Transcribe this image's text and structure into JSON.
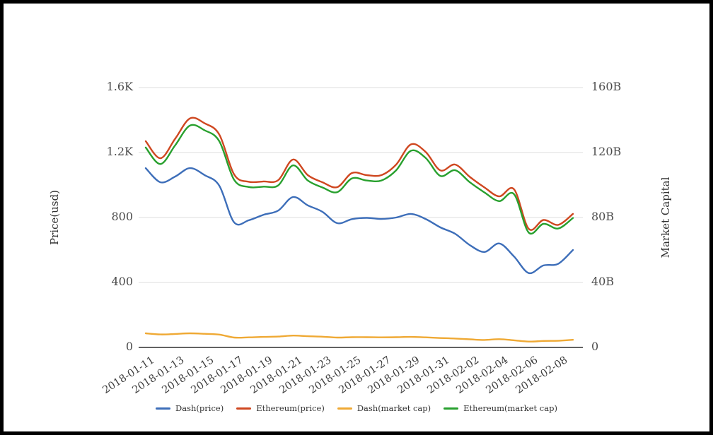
{
  "colors": {
    "background": "#ffffff",
    "frame_border": "#000000",
    "gridline": "#dcdcdc",
    "axis_line": "#2f2f2f",
    "tick_text": "#4a4a4a"
  },
  "chart_data": {
    "type": "line",
    "smooth": true,
    "grid": "horizontal",
    "legend_position": "bottom",
    "x": [
      "2018-01-11",
      "2018-01-12",
      "2018-01-13",
      "2018-01-14",
      "2018-01-15",
      "2018-01-16",
      "2018-01-17",
      "2018-01-18",
      "2018-01-19",
      "2018-01-20",
      "2018-01-21",
      "2018-01-22",
      "2018-01-23",
      "2018-01-24",
      "2018-01-25",
      "2018-01-26",
      "2018-01-27",
      "2018-01-28",
      "2018-01-29",
      "2018-01-30",
      "2018-01-31",
      "2018-02-01",
      "2018-02-02",
      "2018-02-03",
      "2018-02-04",
      "2018-02-05",
      "2018-02-06",
      "2018-02-07",
      "2018-02-08",
      "2018-02-09"
    ],
    "x_tick_every": 2,
    "x_tick_labels": [
      "2018-01-11",
      "2018-01-13",
      "2018-01-15",
      "2018-01-17",
      "2018-01-19",
      "2018-01-21",
      "2018-01-23",
      "2018-01-25",
      "2018-01-27",
      "2018-01-29",
      "2018-01-31",
      "2018-02-02",
      "2018-02-04",
      "2018-02-06",
      "2018-02-08"
    ],
    "axes": {
      "left": {
        "title": "Price(usd)",
        "max": 1600,
        "ticks": [
          {
            "value": 0,
            "label": "0"
          },
          {
            "value": 400,
            "label": "400"
          },
          {
            "value": 800,
            "label": "800"
          },
          {
            "value": 1200,
            "label": "1.2K"
          },
          {
            "value": 1600,
            "label": "1.6K"
          }
        ]
      },
      "right": {
        "title": "Market Capital",
        "max": 160,
        "ticks": [
          {
            "value": 0,
            "label": "0"
          },
          {
            "value": 40,
            "label": "40B"
          },
          {
            "value": 80,
            "label": "80B"
          },
          {
            "value": 120,
            "label": "120B"
          },
          {
            "value": 160,
            "label": "160B"
          }
        ]
      }
    },
    "series": [
      {
        "name": "Dash(price)",
        "axis": "left",
        "color": "#3d6eb9",
        "values": [
          1104,
          1017,
          1052,
          1104,
          1061,
          995,
          770,
          783,
          817,
          843,
          926,
          875,
          835,
          765,
          790,
          798,
          791,
          800,
          822,
          791,
          739,
          700,
          630,
          588,
          640,
          560,
          458,
          505,
          515,
          600
        ]
      },
      {
        "name": "Ethereum(price)",
        "axis": "left",
        "color": "#cf4720",
        "values": [
          1270,
          1165,
          1285,
          1410,
          1380,
          1310,
          1065,
          1020,
          1022,
          1030,
          1157,
          1061,
          1017,
          987,
          1074,
          1061,
          1061,
          1126,
          1250,
          1204,
          1090,
          1126,
          1050,
          985,
          930,
          974,
          730,
          785,
          755,
          822
        ]
      },
      {
        "name": "Dash(market cap)",
        "axis": "right",
        "color": "#efa934",
        "values": [
          8.7,
          8.0,
          8.3,
          8.7,
          8.4,
          7.9,
          6.1,
          6.2,
          6.5,
          6.7,
          7.3,
          6.9,
          6.6,
          6.1,
          6.3,
          6.3,
          6.2,
          6.3,
          6.5,
          6.2,
          5.8,
          5.5,
          5.0,
          4.6,
          5.1,
          4.4,
          3.6,
          4.0,
          4.1,
          4.7
        ]
      },
      {
        "name": "Ethereum(market cap)",
        "axis": "right",
        "color": "#28a02e",
        "values": [
          123.1,
          112.9,
          124.5,
          136.6,
          133.7,
          126.9,
          103.2,
          98.8,
          99.0,
          99.8,
          112.1,
          102.8,
          98.5,
          95.6,
          104.1,
          102.8,
          102.8,
          109.1,
          121.1,
          116.7,
          105.6,
          109.1,
          101.7,
          95.4,
          90.1,
          94.4,
          70.7,
          76.1,
          73.2,
          79.7
        ]
      }
    ]
  }
}
